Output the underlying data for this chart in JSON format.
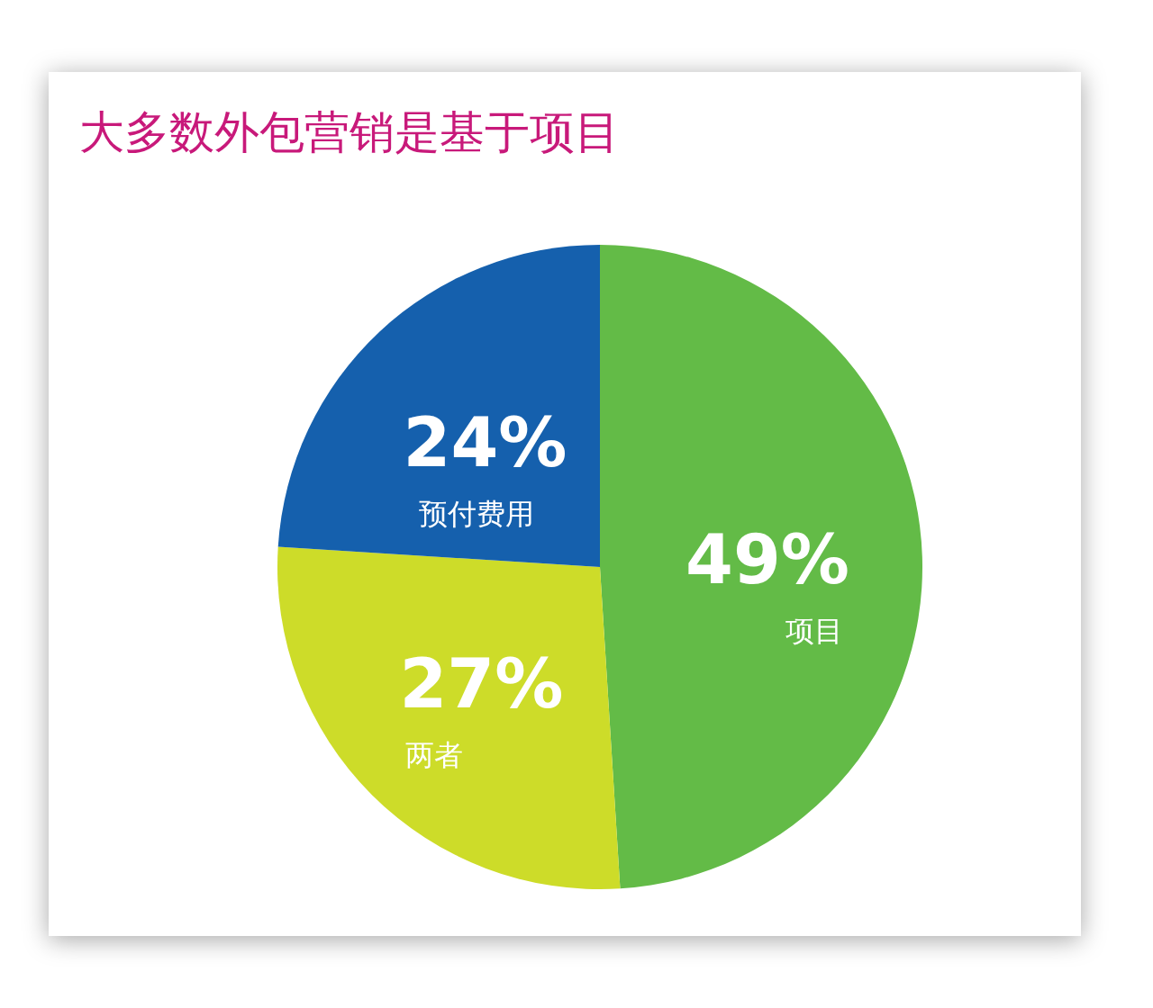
{
  "chart_data": {
    "type": "pie",
    "title": "大多数外包营销是基于项目",
    "categories": [
      "项目",
      "两者",
      "预付费用"
    ],
    "values": [
      49,
      27,
      24
    ],
    "colors": [
      "#63bb47",
      "#cddc29",
      "#1560ad"
    ],
    "value_labels": [
      "49%",
      "27%",
      "24%"
    ]
  }
}
